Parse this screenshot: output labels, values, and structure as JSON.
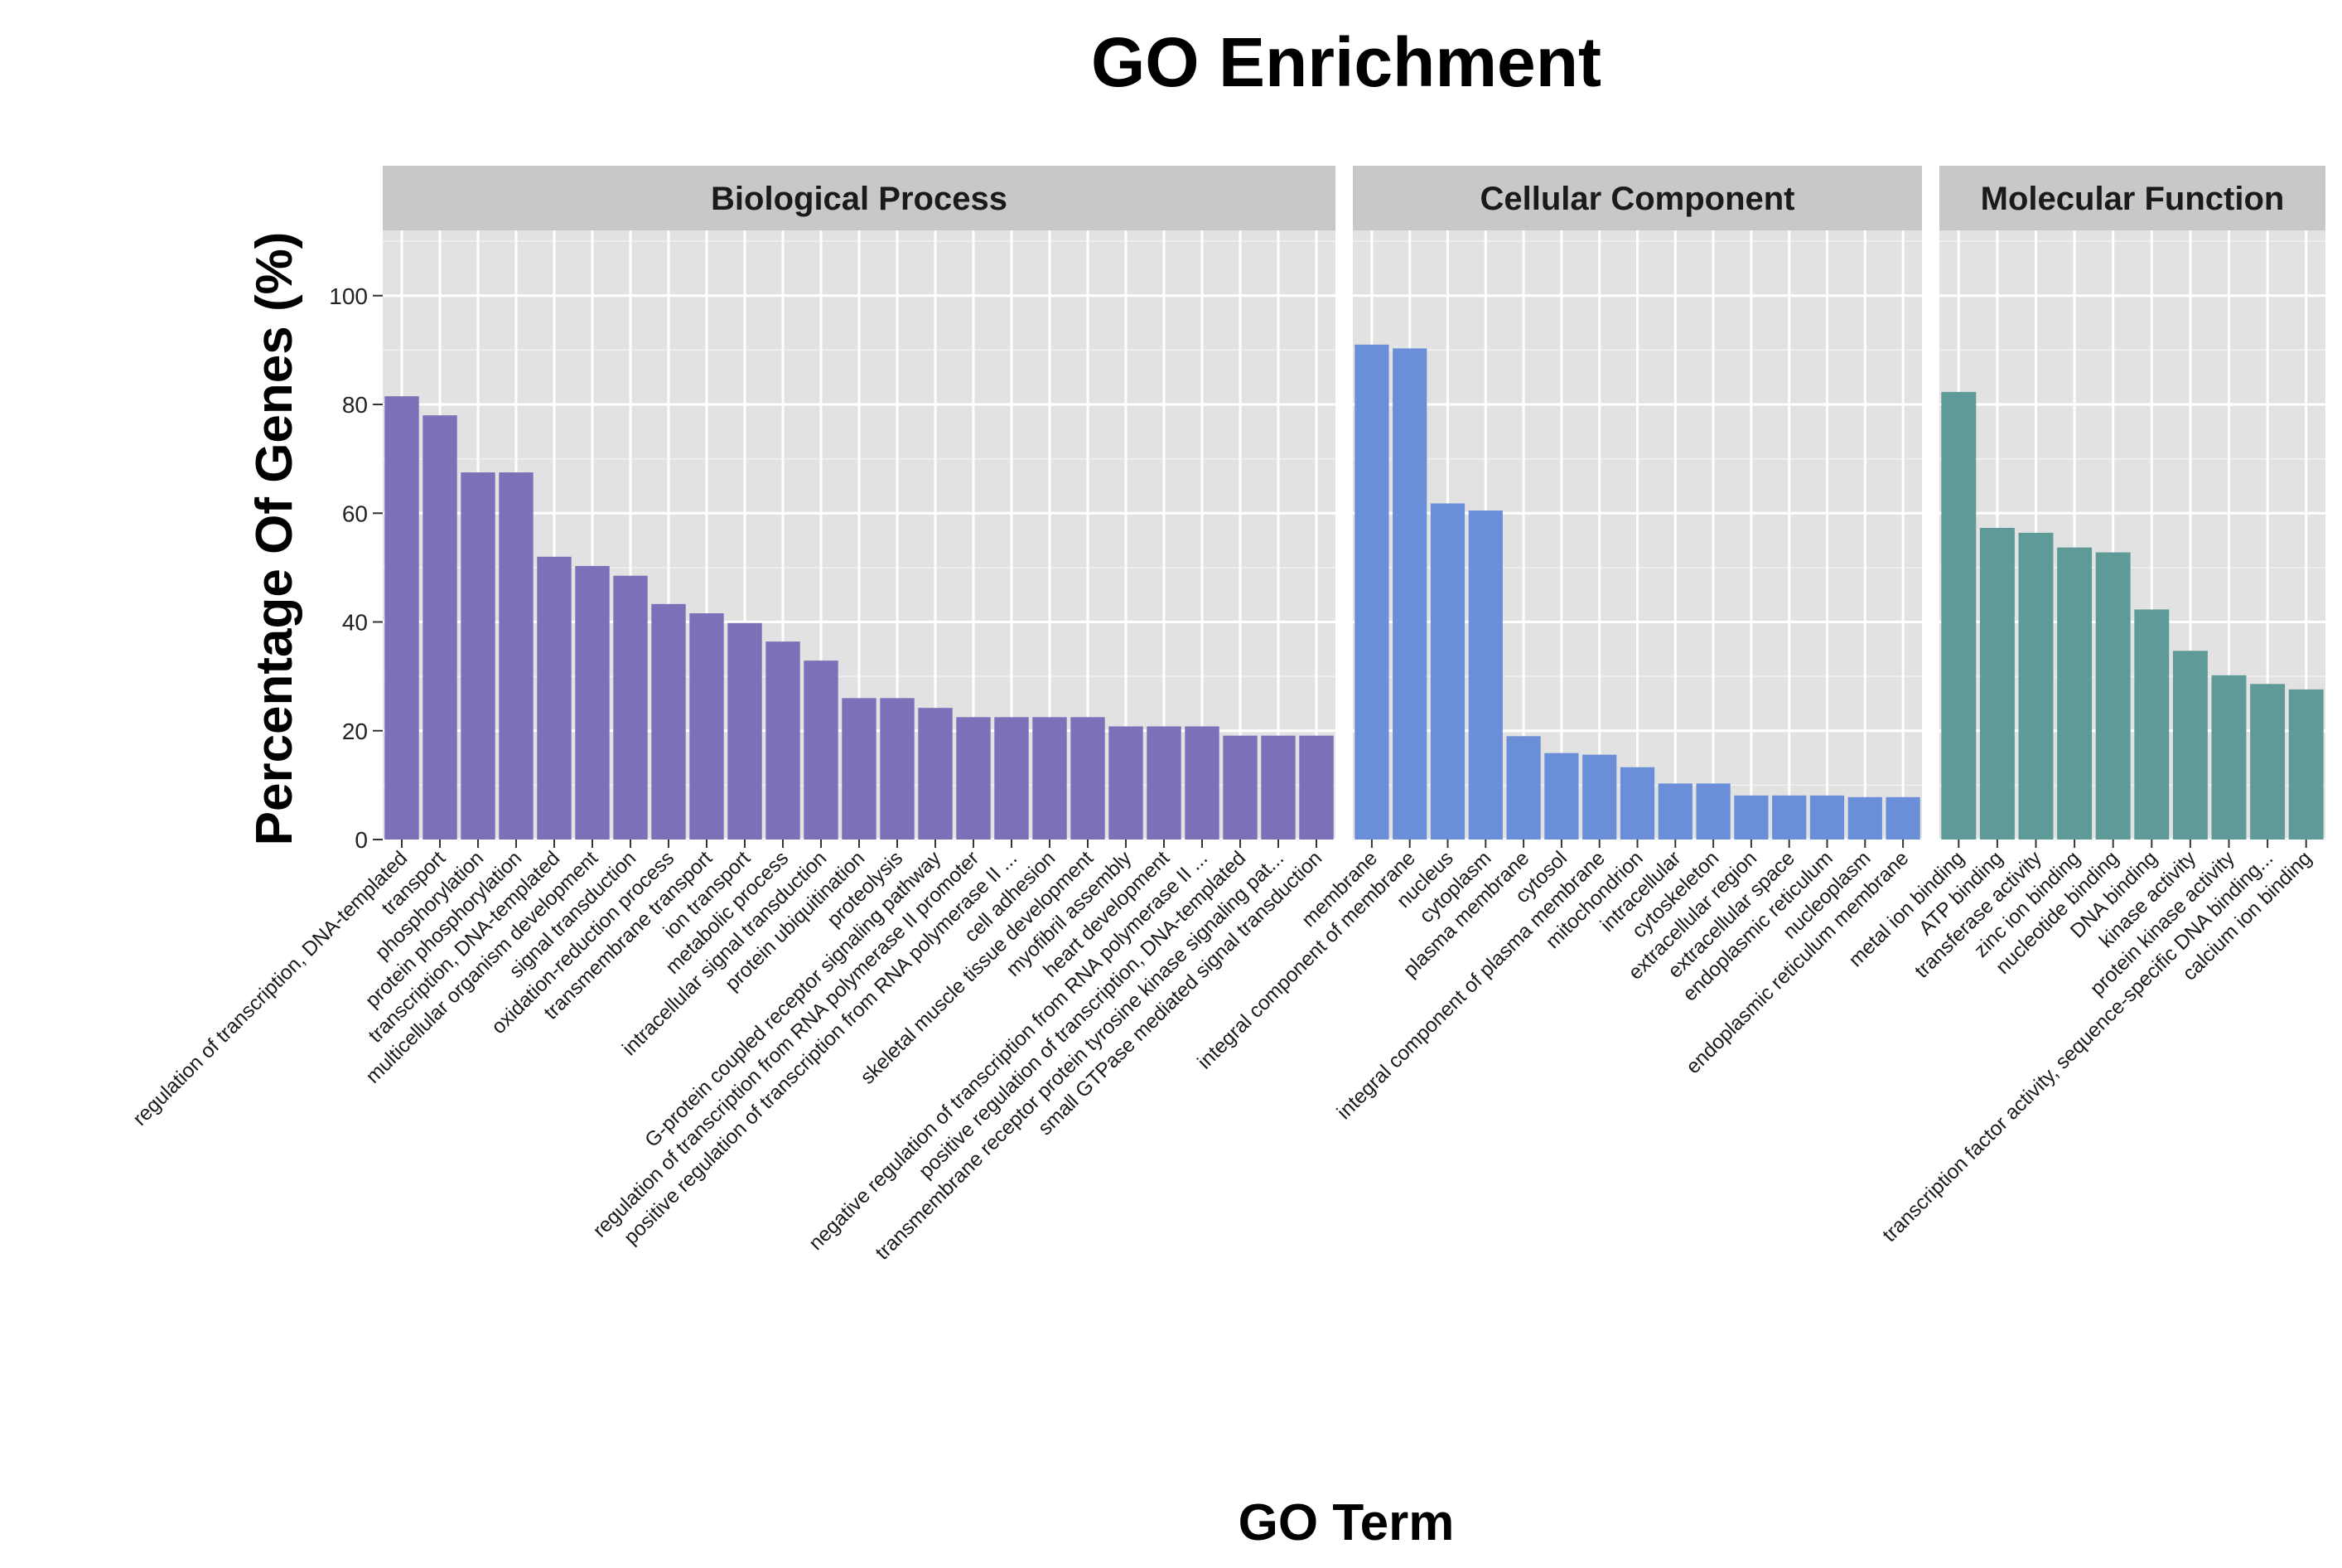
{
  "chart_data": {
    "type": "bar",
    "title": "GO Enrichment",
    "xlabel": "GO Term",
    "ylabel": "Percentage Of Genes (%)",
    "ylim": [
      0,
      112
    ],
    "yticks": [
      0,
      20,
      40,
      60,
      80,
      100
    ],
    "grid": true,
    "panels": [
      {
        "name": "Biological Process",
        "color": "#7b71b8",
        "categories": [
          "regulation of transcription, DNA-templated",
          "transport",
          "phosphorylation",
          "protein phosphorylation",
          "transcription, DNA-templated",
          "multicellular organism development",
          "signal transduction",
          "oxidation-reduction process",
          "transmembrane transport",
          "ion transport",
          "metabolic process",
          "intracellular signal transduction",
          "protein ubiquitination",
          "proteolysis",
          "G-protein coupled receptor signaling pathway",
          "regulation of transcription from RNA polymerase II promoter",
          "positive regulation of transcription from RNA polymerase II ...",
          "cell adhesion",
          "skeletal muscle tissue development",
          "myofibril assembly",
          "heart development",
          "negative regulation of transcription from RNA polymerase II ...",
          "positive regulation of transcription, DNA-templated",
          "transmembrane receptor protein tyrosine kinase signaling pat...",
          "small GTPase mediated signal transduction"
        ],
        "values": [
          81.5,
          78,
          67.5,
          67.5,
          52,
          50.3,
          48.5,
          43.3,
          41.6,
          39.8,
          36.4,
          32.9,
          26,
          26,
          24.2,
          22.5,
          22.5,
          22.5,
          22.5,
          20.8,
          20.8,
          20.8,
          19.1,
          19.1,
          19.1
        ]
      },
      {
        "name": "Cellular Component",
        "color": "#6a8fd8",
        "categories": [
          "membrane",
          "integral component of membrane",
          "nucleus",
          "cytoplasm",
          "plasma membrane",
          "cytosol",
          "integral component of plasma membrane",
          "mitochondrion",
          "intracellular",
          "cytoskeleton",
          "extracellular region",
          "extracellular space",
          "endoplasmic reticulum",
          "nucleoplasm",
          "endoplasmic reticulum membrane"
        ],
        "values": [
          91,
          90.3,
          61.8,
          60.5,
          19,
          15.9,
          15.6,
          13.3,
          10.3,
          10.3,
          8.1,
          8.1,
          8.1,
          7.8,
          7.8
        ]
      },
      {
        "name": "Molecular Function",
        "color": "#5e9b98",
        "categories": [
          "metal ion binding",
          "ATP binding",
          "transferase activity",
          "zinc ion binding",
          "nucleotide binding",
          "DNA binding",
          "kinase activity",
          "protein kinase activity",
          "transcription factor activity, sequence-specific DNA binding...",
          "calcium ion binding"
        ],
        "values": [
          82.3,
          57.3,
          56.4,
          53.7,
          52.8,
          42.3,
          34.7,
          30.2,
          28.6,
          27.6
        ]
      }
    ]
  }
}
